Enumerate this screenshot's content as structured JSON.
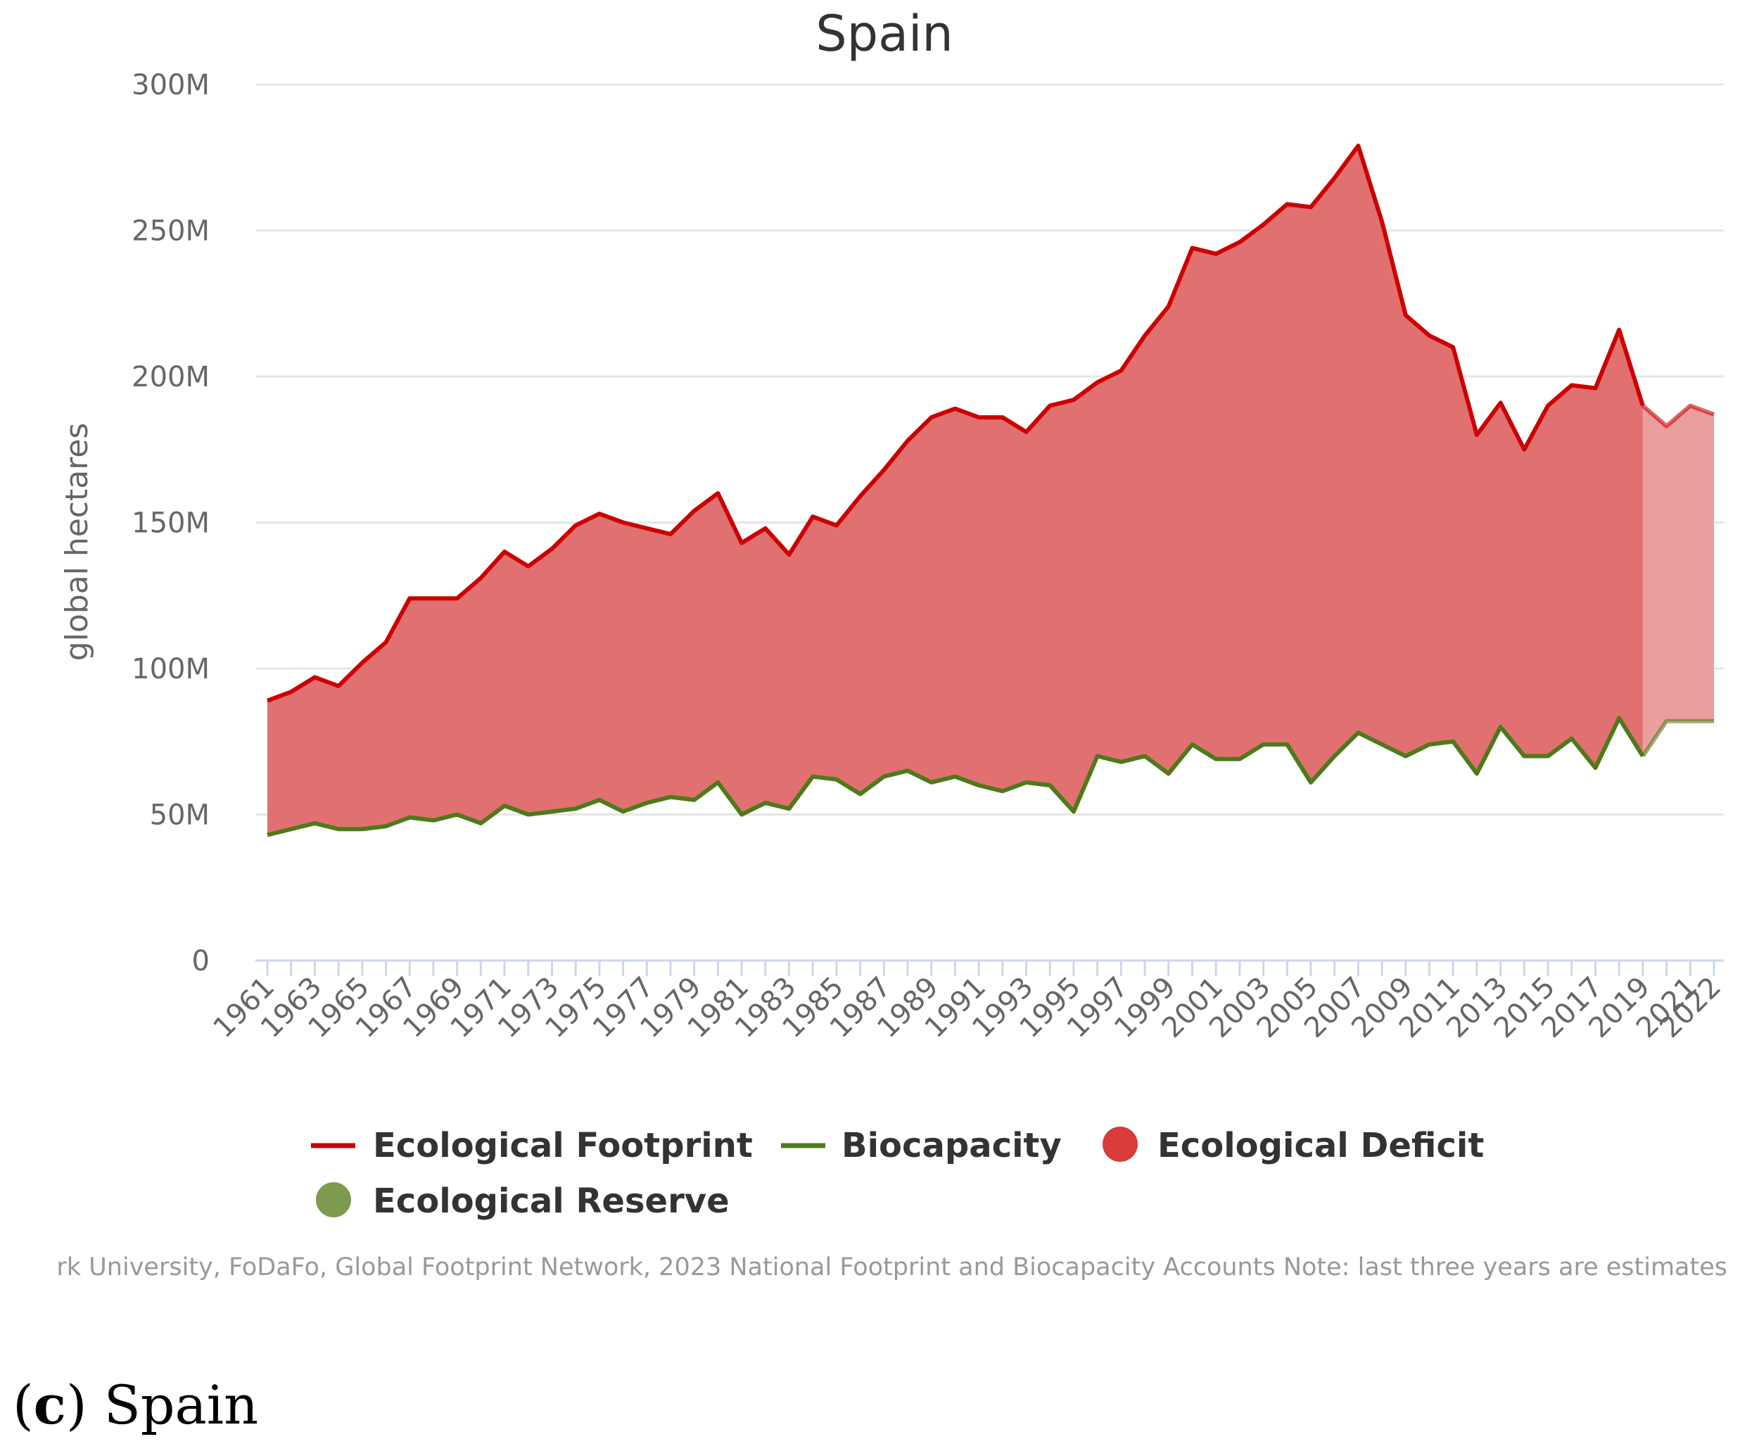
{
  "chart_data": {
    "type": "area",
    "title": "Spain",
    "xlabel": "",
    "ylabel": "global hectares",
    "ylim": [
      0,
      300000000
    ],
    "yticks": [
      0,
      50000000,
      100000000,
      150000000,
      200000000,
      250000000,
      300000000
    ],
    "ytick_labels": [
      "0",
      "50M",
      "100M",
      "150M",
      "200M",
      "250M",
      "300M"
    ],
    "x_tick_labels": [
      "1961",
      "1963",
      "1965",
      "1967",
      "1969",
      "1971",
      "1973",
      "1975",
      "1977",
      "1979",
      "1981",
      "1983",
      "1985",
      "1987",
      "1989",
      "1991",
      "1993",
      "1995",
      "1997",
      "1999",
      "2001",
      "2003",
      "2005",
      "2007",
      "2009",
      "2011",
      "2013",
      "2015",
      "2017",
      "2019",
      "2021",
      "2022"
    ],
    "years": [
      1961,
      1962,
      1963,
      1964,
      1965,
      1966,
      1967,
      1968,
      1969,
      1970,
      1971,
      1972,
      1973,
      1974,
      1975,
      1976,
      1977,
      1978,
      1979,
      1980,
      1981,
      1982,
      1983,
      1984,
      1985,
      1986,
      1987,
      1988,
      1989,
      1990,
      1991,
      1992,
      1993,
      1994,
      1995,
      1996,
      1997,
      1998,
      1999,
      2000,
      2001,
      2002,
      2003,
      2004,
      2005,
      2006,
      2007,
      2008,
      2009,
      2010,
      2011,
      2012,
      2013,
      2014,
      2015,
      2016,
      2017,
      2018,
      2019,
      2020,
      2021,
      2022
    ],
    "estimate_from_year": 2019,
    "series": [
      {
        "name": "Ecological Footprint",
        "color": "#cc0000",
        "values": [
          89,
          92,
          97,
          94,
          102,
          109,
          124,
          124,
          124,
          131,
          140,
          135,
          141,
          149,
          153,
          150,
          148,
          146,
          154,
          160,
          143,
          148,
          139,
          152,
          149,
          159,
          168,
          178,
          186,
          189,
          186,
          186,
          181,
          190,
          192,
          198,
          202,
          214,
          224,
          244,
          242,
          246,
          252,
          259,
          258,
          268,
          279,
          253,
          221,
          214,
          210,
          180,
          191,
          175,
          190,
          197,
          196,
          216,
          190,
          183,
          190,
          187
        ]
      },
      {
        "name": "Biocapacity",
        "color": "#4d7a1a",
        "values": [
          43,
          45,
          47,
          45,
          45,
          46,
          49,
          48,
          50,
          47,
          53,
          50,
          51,
          52,
          55,
          51,
          54,
          56,
          55,
          61,
          50,
          54,
          52,
          63,
          62,
          57,
          63,
          65,
          61,
          63,
          60,
          58,
          61,
          60,
          51,
          70,
          68,
          70,
          64,
          74,
          69,
          69,
          74,
          74,
          61,
          70,
          78,
          74,
          70,
          74,
          75,
          64,
          80,
          70,
          70,
          76,
          66,
          83,
          70,
          82,
          82,
          82
        ]
      }
    ],
    "value_unit_multiplier": 1000000,
    "legend": [
      {
        "label": "Ecological Footprint",
        "symbol": "line",
        "color": "#cc0000"
      },
      {
        "label": "Biocapacity",
        "symbol": "line",
        "color": "#4d7a1a"
      },
      {
        "label": "Ecological Deficit",
        "symbol": "dot",
        "color": "#d93a3a"
      },
      {
        "label": "Ecological Reserve",
        "symbol": "dot",
        "color": "#7d9a4f"
      }
    ],
    "deficit_color": "#e17070",
    "deficit_estimate_color": "#ea9e9e",
    "legend_position": "bottom-center",
    "grid": true
  },
  "credits": "rk University, FoDaFo, Global Footprint Network, 2023 National Footprint and Biocapacity Accounts Note: last three years are estimates",
  "caption": {
    "label": "c",
    "text": " Spain"
  }
}
